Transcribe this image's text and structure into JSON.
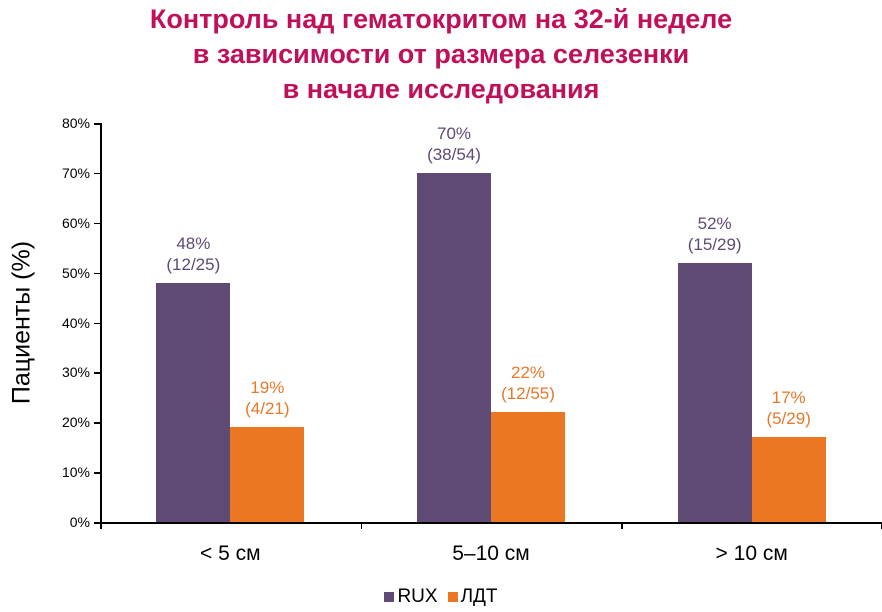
{
  "title_lines": [
    "Контроль над гематокритом на 32-й неделе",
    "в зависимости от размера селезенки",
    "в начале исследования"
  ],
  "colors": {
    "title": "#c0105a",
    "rux": "#5e4a75",
    "ldt": "#ec7723",
    "rux_label": "#5e4a75",
    "ldt_label": "#e8782a"
  },
  "legend": [
    {
      "name": "RUX",
      "color": "#5e4a75"
    },
    {
      "name": "ЛДТ",
      "color": "#ec7723"
    }
  ],
  "chart_data": {
    "type": "bar",
    "title": "Контроль над гематокритом на 32-й неделе в зависимости от размера селезенки в начале исследования",
    "xlabel": "",
    "ylabel": "Пациенты (%)",
    "ylim": [
      0,
      80
    ],
    "yticks": [
      "0%",
      "10%",
      "20%",
      "30%",
      "40%",
      "50%",
      "60%",
      "70%",
      "80%"
    ],
    "grid": false,
    "legend_position": "bottom",
    "categories": [
      "< 5 см",
      "5–10 см",
      "> 10 см"
    ],
    "series": [
      {
        "name": "RUX",
        "values": [
          48,
          70,
          52
        ],
        "labels": [
          "48%",
          "70%",
          "52%"
        ],
        "counts": [
          "(12/25)",
          "(38/54)",
          "(15/29)"
        ]
      },
      {
        "name": "ЛДТ",
        "values": [
          19,
          22,
          17
        ],
        "labels": [
          "19%",
          "22%",
          "17%"
        ],
        "counts": [
          "(4/21)",
          "(12/55)",
          "(5/29)"
        ]
      }
    ]
  }
}
